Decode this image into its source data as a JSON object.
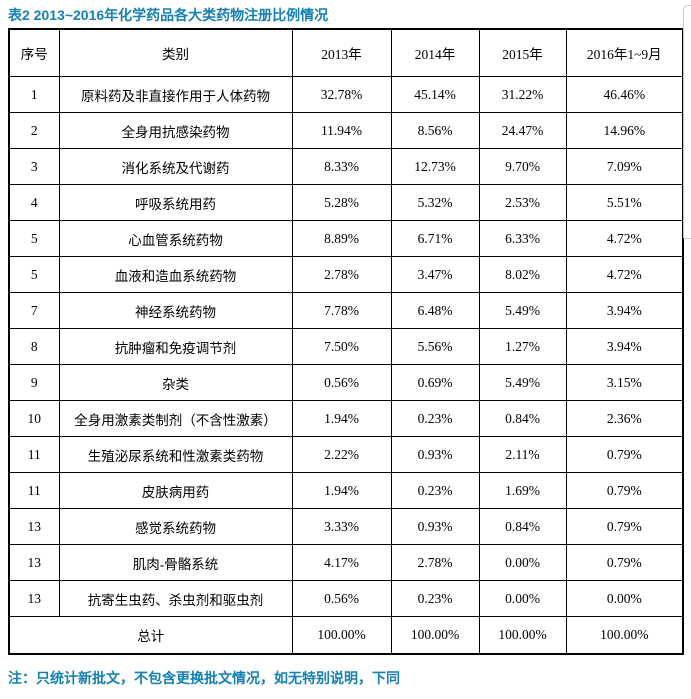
{
  "title": "表2 2013~2016年化学药品各大类药物注册比例情况",
  "footer_note": "注：只统计新批文，不包含更换批文情况，如无特别说明，下同",
  "colors": {
    "heading_blue": "#1580B2",
    "table_border": "#000000",
    "side_edge_gray": "#c9c9c9",
    "background": "#ffffff"
  },
  "table": {
    "headers": [
      "序号",
      "类别",
      "2013年",
      "2014年",
      "2015年",
      "2016年1~9月"
    ],
    "rows": [
      [
        "1",
        "原料药及非直接作用于人体药物",
        "32.78%",
        "45.14%",
        "31.22%",
        "46.46%"
      ],
      [
        "2",
        "全身用抗感染药物",
        "11.94%",
        "8.56%",
        "24.47%",
        "14.96%"
      ],
      [
        "3",
        "消化系统及代谢药",
        "8.33%",
        "12.73%",
        "9.70%",
        "7.09%"
      ],
      [
        "4",
        "呼吸系统用药",
        "5.28%",
        "5.32%",
        "2.53%",
        "5.51%"
      ],
      [
        "5",
        "心血管系统药物",
        "8.89%",
        "6.71%",
        "6.33%",
        "4.72%"
      ],
      [
        "5",
        "血液和造血系统药物",
        "2.78%",
        "3.47%",
        "8.02%",
        "4.72%"
      ],
      [
        "7",
        "神经系统药物",
        "7.78%",
        "6.48%",
        "5.49%",
        "3.94%"
      ],
      [
        "8",
        "抗肿瘤和免疫调节剂",
        "7.50%",
        "5.56%",
        "1.27%",
        "3.94%"
      ],
      [
        "9",
        "杂类",
        "0.56%",
        "0.69%",
        "5.49%",
        "3.15%"
      ],
      [
        "10",
        "全身用激素类制剂（不含性激素）",
        "1.94%",
        "0.23%",
        "0.84%",
        "2.36%"
      ],
      [
        "11",
        "生殖泌尿系统和性激素类药物",
        "2.22%",
        "0.93%",
        "2.11%",
        "0.79%"
      ],
      [
        "11",
        "皮肤病用药",
        "1.94%",
        "0.23%",
        "1.69%",
        "0.79%"
      ],
      [
        "13",
        "感觉系统药物",
        "3.33%",
        "0.93%",
        "0.84%",
        "0.79%"
      ],
      [
        "13",
        "肌肉-骨骼系统",
        "4.17%",
        "2.78%",
        "0.00%",
        "0.79%"
      ],
      [
        "13",
        "抗寄生虫药、杀虫剂和驱虫剂",
        "0.56%",
        "0.23%",
        "0.00%",
        "0.00%"
      ]
    ],
    "total_row": {
      "label": "总计",
      "values": [
        "100.00%",
        "100.00%",
        "100.00%",
        "100.00%"
      ]
    }
  }
}
